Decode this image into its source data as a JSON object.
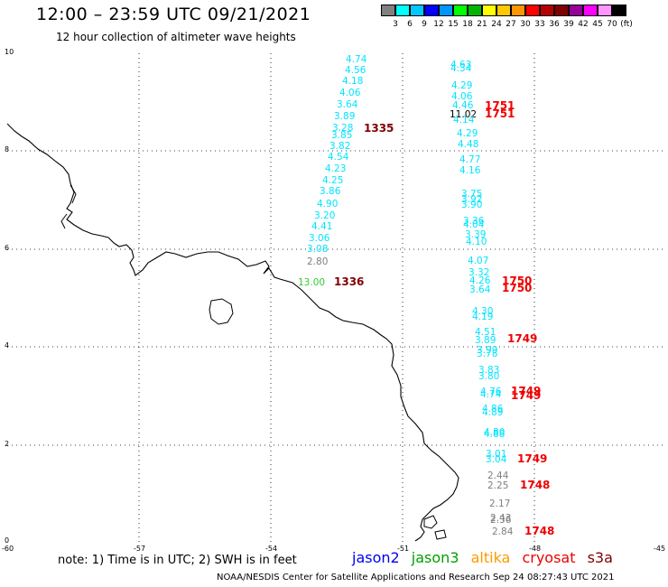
{
  "header": {
    "title": "12:00 – 23:59 UTC 09/21/2021",
    "subtitle": "12 hour collection of altimeter wave heights"
  },
  "legend": {
    "colors": [
      "#808080",
      "#00ffff",
      "#00c8ff",
      "#0000ff",
      "#0096ff",
      "#00ff00",
      "#00b400",
      "#ffff00",
      "#ffc800",
      "#ff9600",
      "#ff0000",
      "#b40000",
      "#800000",
      "#960096",
      "#ff00ff",
      "#ff96ff",
      "#000000"
    ],
    "labels": [
      "3",
      "6",
      "9",
      "12",
      "15",
      "18",
      "21",
      "24",
      "27",
      "30",
      "33",
      "36",
      "39",
      "42",
      "45",
      "70",
      "(ft)"
    ]
  },
  "axes": {
    "x_ticks": [
      "-60",
      "-57",
      "-54",
      "-51",
      "-48",
      "-45"
    ],
    "y_ticks": [
      "10",
      "8",
      "6",
      "4",
      "2",
      "0"
    ]
  },
  "track1": {
    "values": [
      "4.74",
      "4.56",
      "4.18",
      "4.06",
      "3.64",
      "3.89",
      "3.28",
      "3.85",
      "3.82",
      "4.54",
      "4.23",
      "4.25",
      "3.86",
      "4.90",
      "3.20",
      "4.41",
      "3.06",
      "3.08",
      "2.80",
      "13.00"
    ],
    "times": [
      "1335",
      "1336"
    ]
  },
  "track2": {
    "values": [
      "4.63",
      "4.34",
      "4.29",
      "4.06",
      "4.46",
      "11.02",
      "4.14",
      "4.29",
      "4.48",
      "4.77",
      "4.16",
      "3.75",
      "3.92",
      "3.90",
      "3.36",
      "4.04",
      "3.39",
      "4.10",
      "4.07",
      "3.32",
      "4.26",
      "3.64",
      "4.30",
      "4.19",
      "4.51",
      "3.89",
      "3.99",
      "3.78",
      "3.83",
      "3.80",
      "4.76",
      "4.74",
      "4.86",
      "4.89",
      "4.80",
      "4.88",
      "3.01",
      "3.04",
      "2.44",
      "2.25",
      "2.17",
      "2.43",
      "2.36",
      "2.84"
    ],
    "times": [
      "1751",
      "1751",
      "1750",
      "1750",
      "1749",
      "1749",
      "1749",
      "1749",
      "1748",
      "1748"
    ]
  },
  "notes": {
    "note": "note:  1) Time is in UTC;  2) SWH is in feet",
    "satellites": [
      "jason2",
      "jason3",
      "altika",
      "cryosat",
      "s3a"
    ]
  },
  "footer": "NOAA/NESDIS Center for Satellite Applications and Research    Sep 24 08:27:43 UTC 2021"
}
